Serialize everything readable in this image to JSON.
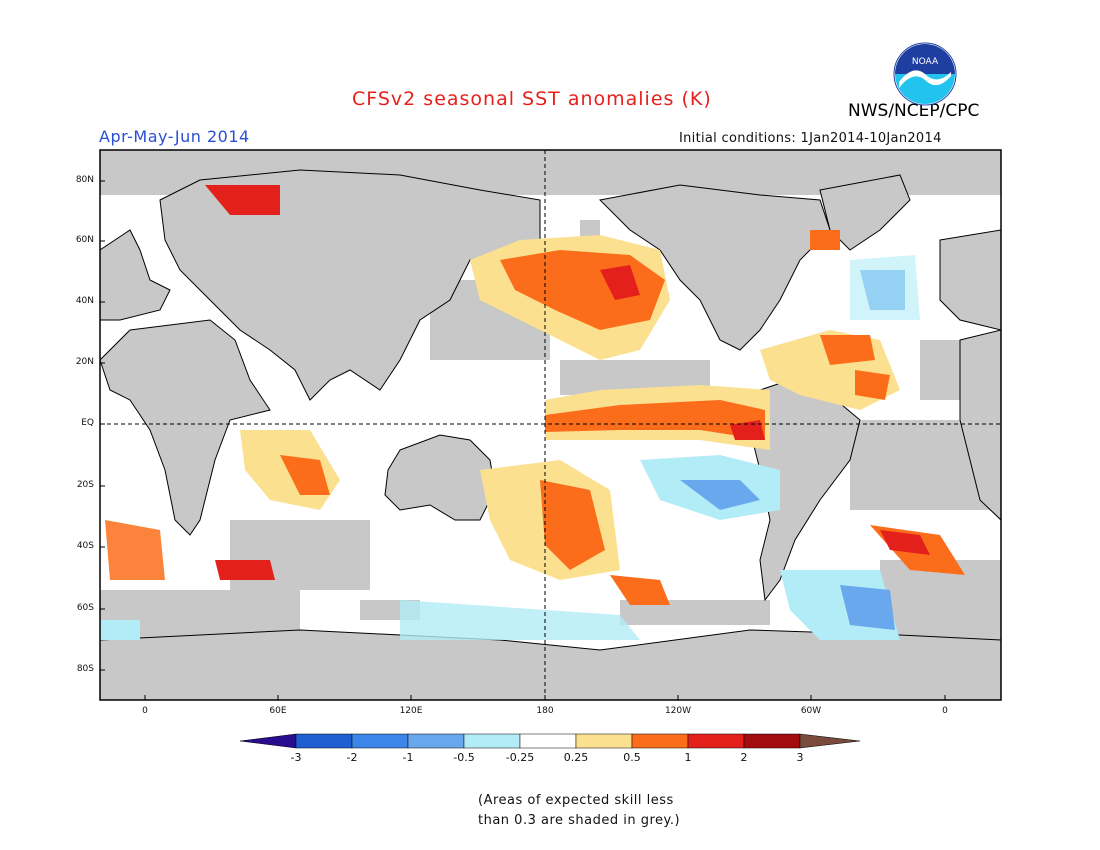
{
  "header": {
    "title": "CFSv2 seasonal SST anomalies (K)",
    "title_color": "#e8201c",
    "agency": "NWS/NCEP/CPC",
    "season": "Apr-May-Jun 2014",
    "season_color": "#2a4fd6",
    "initial_conditions": "Initial conditions: 1Jan2014-10Jan2014"
  },
  "logo": {
    "text": "NOAA",
    "icon": "noaa-logo-icon"
  },
  "map": {
    "land_color": "#c8c8c8",
    "ocean_color": "#ffffff",
    "lat_labels": [
      "80N",
      "60N",
      "40N",
      "20N",
      "EQ",
      "20S",
      "40S",
      "60S",
      "80S"
    ],
    "lon_labels": [
      "0",
      "60E",
      "120E",
      "180",
      "120W",
      "60W",
      "0"
    ]
  },
  "colorbar": {
    "labels": [
      "-3",
      "-2",
      "-1",
      "-0.5",
      "-0.25",
      "0.25",
      "0.5",
      "1",
      "2",
      "3"
    ],
    "colors": [
      "#2a0d8f",
      "#1f5fd1",
      "#3b86e8",
      "#6aa8ee",
      "#b2ecf6",
      "#ffffff",
      "#fbe08f",
      "#fb6d1a",
      "#e4201c",
      "#a20c0c",
      "#7a4a3c"
    ]
  },
  "note": {
    "line1": "(Areas of expected skill less",
    "line2": "than 0.3 are shaded in grey.)"
  }
}
